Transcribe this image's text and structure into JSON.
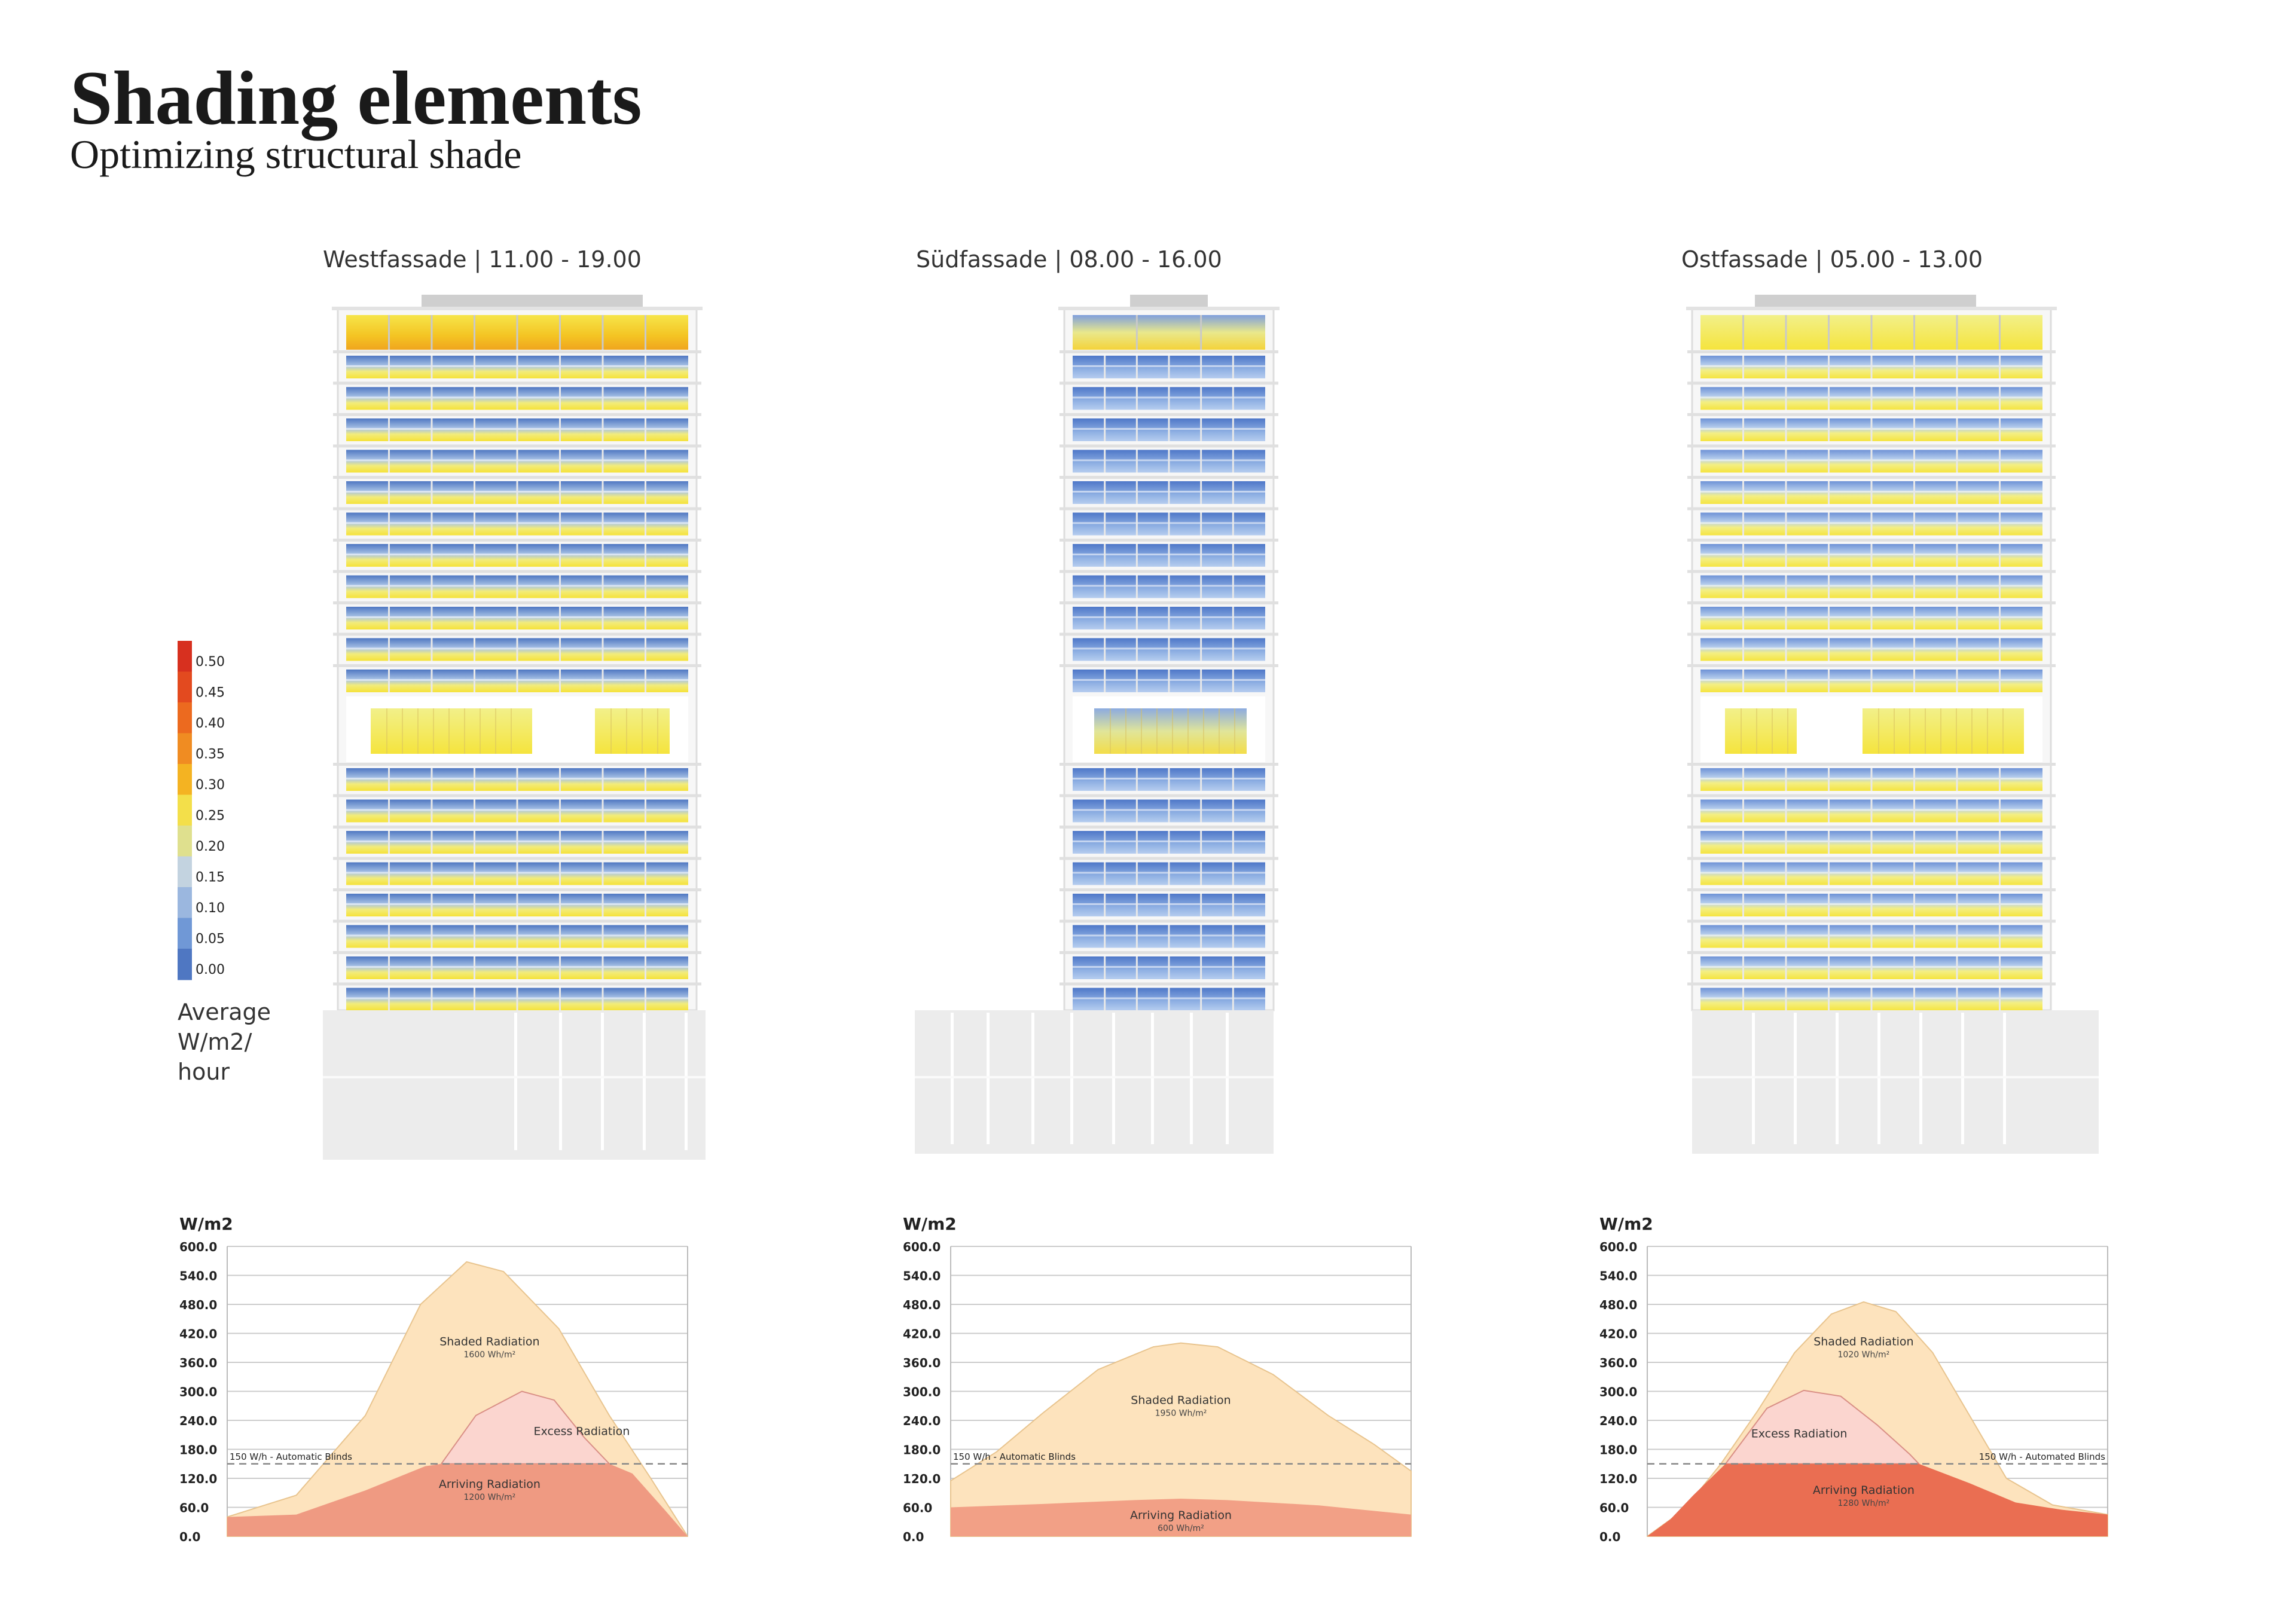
{
  "title": "Shading elements",
  "subtitle": "Optimizing structural shade",
  "facades": [
    {
      "label": "Westfassade | 11.00 - 19.00",
      "style": "west"
    },
    {
      "label": "Südfassade | 08.00 - 16.00",
      "style": "south"
    },
    {
      "label": "Ostfassade | 05.00 - 13.00",
      "style": "east"
    }
  ],
  "legend": {
    "ticks": [
      "0.50",
      "0.45",
      "0.40",
      "0.35",
      "0.30",
      "0.25",
      "0.20",
      "0.15",
      "0.10",
      "0.05",
      "0.00"
    ],
    "colors": [
      "#d7301f",
      "#e34a1f",
      "#ec6a1f",
      "#f08c22",
      "#f4b322",
      "#f3df4a",
      "#dfe08e",
      "#c3d3e0",
      "#9bb7df",
      "#7098d6",
      "#4f77c2"
    ],
    "unit_lines": [
      "Average",
      "W/m2/",
      "hour"
    ]
  },
  "colors": {
    "shaded": "#fde3bd",
    "excess": "#fbd5cf",
    "arriving_west": "#ef9a82",
    "arriving_south": "#f2a086",
    "arriving_east": "#ea6e52",
    "grid": "#cccccc"
  },
  "chart_data": [
    {
      "type": "area",
      "ylabel": "W/m2",
      "ylim": [
        0,
        600
      ],
      "yticks": [
        "600.0",
        "540.0",
        "480.0",
        "420.0",
        "360.0",
        "300.0",
        "240.0",
        "180.0",
        "120.0",
        "60.0",
        "0.0"
      ],
      "threshold": {
        "value": 150,
        "label": "150 W/h - Automatic Blinds",
        "side": "left"
      },
      "series": [
        {
          "name": "Shaded Radiation",
          "value_label": "1600 Wh/m²",
          "role": "shaded",
          "points": [
            [
              0,
              40
            ],
            [
              0.15,
              85
            ],
            [
              0.3,
              250
            ],
            [
              0.42,
              480
            ],
            [
              0.52,
              568
            ],
            [
              0.6,
              548
            ],
            [
              0.72,
              430
            ],
            [
              0.83,
              250
            ],
            [
              0.92,
              120
            ],
            [
              1,
              0
            ]
          ]
        },
        {
          "name": "Excess Radiation",
          "role": "excess",
          "points": [
            [
              0.465,
              150
            ],
            [
              0.54,
              250
            ],
            [
              0.64,
              300
            ],
            [
              0.71,
              282
            ],
            [
              0.775,
              205
            ],
            [
              0.83,
              150
            ]
          ]
        },
        {
          "name": "Arriving Radiation",
          "value_label": "1200 Wh/m²",
          "role": "arriving",
          "points": [
            [
              0,
              40
            ],
            [
              0.15,
              45
            ],
            [
              0.3,
              95
            ],
            [
              0.43,
              145
            ],
            [
              0.465,
              150
            ],
            [
              0.83,
              150
            ],
            [
              0.88,
              130
            ],
            [
              0.95,
              55
            ],
            [
              1,
              0
            ]
          ]
        }
      ],
      "labels": [
        {
          "series": "Shaded Radiation",
          "x": 0.57,
          "y": 395
        },
        {
          "series": "Excess Radiation",
          "x": 0.77,
          "y": 210
        },
        {
          "series": "Arriving Radiation",
          "x": 0.57,
          "y": 100
        }
      ]
    },
    {
      "type": "area",
      "ylabel": "W/m2",
      "ylim": [
        0,
        600
      ],
      "yticks": [
        "600.0",
        "540.0",
        "480.0",
        "420.0",
        "360.0",
        "300.0",
        "240.0",
        "180.0",
        "120.0",
        "60.0",
        "0.0"
      ],
      "threshold": {
        "value": 150,
        "label": "150 W/h - Automatic Blinds",
        "side": "left"
      },
      "series": [
        {
          "name": "Shaded Radiation",
          "value_label": "1950 Wh/m²",
          "role": "shaded",
          "points": [
            [
              0,
              115
            ],
            [
              0.1,
              175
            ],
            [
              0.2,
              255
            ],
            [
              0.32,
              345
            ],
            [
              0.44,
              392
            ],
            [
              0.5,
              400
            ],
            [
              0.58,
              392
            ],
            [
              0.7,
              335
            ],
            [
              0.82,
              250
            ],
            [
              0.92,
              190
            ],
            [
              1,
              135
            ]
          ]
        },
        {
          "name": "Arriving Radiation",
          "value_label": "600 Wh/m²",
          "role": "arriving",
          "points": [
            [
              0,
              60
            ],
            [
              0.2,
              67
            ],
            [
              0.4,
              75
            ],
            [
              0.5,
              78
            ],
            [
              0.6,
              75
            ],
            [
              0.8,
              64
            ],
            [
              1,
              45
            ]
          ]
        }
      ],
      "labels": [
        {
          "series": "Shaded Radiation",
          "x": 0.5,
          "y": 274
        },
        {
          "series": "Arriving Radiation",
          "x": 0.5,
          "y": 36
        }
      ]
    },
    {
      "type": "area",
      "ylabel": "W/m2",
      "ylim": [
        0,
        600
      ],
      "yticks": [
        "600.0",
        "540.0",
        "480.0",
        "420.0",
        "360.0",
        "300.0",
        "240.0",
        "180.0",
        "120.0",
        "60.0",
        "0.0"
      ],
      "threshold": {
        "value": 150,
        "label": "150 W/h - Automated Blinds",
        "side": "right"
      },
      "series": [
        {
          "name": "Shaded Radiation",
          "value_label": "1020 Wh/m²",
          "role": "shaded",
          "points": [
            [
              0,
              0
            ],
            [
              0.08,
              55
            ],
            [
              0.16,
              150
            ],
            [
              0.24,
              260
            ],
            [
              0.32,
              380
            ],
            [
              0.4,
              460
            ],
            [
              0.47,
              485
            ],
            [
              0.54,
              465
            ],
            [
              0.62,
              380
            ],
            [
              0.7,
              250
            ],
            [
              0.78,
              120
            ],
            [
              0.88,
              65
            ],
            [
              1,
              45
            ]
          ]
        },
        {
          "name": "Excess Radiation",
          "role": "excess",
          "points": [
            [
              0.17,
              150
            ],
            [
              0.26,
              265
            ],
            [
              0.34,
              302
            ],
            [
              0.42,
              290
            ],
            [
              0.5,
              230
            ],
            [
              0.57,
              170
            ],
            [
              0.59,
              150
            ]
          ]
        },
        {
          "name": "Arriving Radiation",
          "value_label": "1280 Wh/m²",
          "role": "arriving",
          "points": [
            [
              0,
              0
            ],
            [
              0.05,
              35
            ],
            [
              0.1,
              85
            ],
            [
              0.17,
              150
            ],
            [
              0.59,
              150
            ],
            [
              0.7,
              110
            ],
            [
              0.8,
              70
            ],
            [
              0.9,
              55
            ],
            [
              1,
              45
            ]
          ]
        }
      ],
      "labels": [
        {
          "series": "Shaded Radiation",
          "x": 0.47,
          "y": 395
        },
        {
          "series": "Excess Radiation",
          "x": 0.33,
          "y": 205
        },
        {
          "series": "Arriving Radiation",
          "x": 0.47,
          "y": 88
        }
      ]
    }
  ]
}
